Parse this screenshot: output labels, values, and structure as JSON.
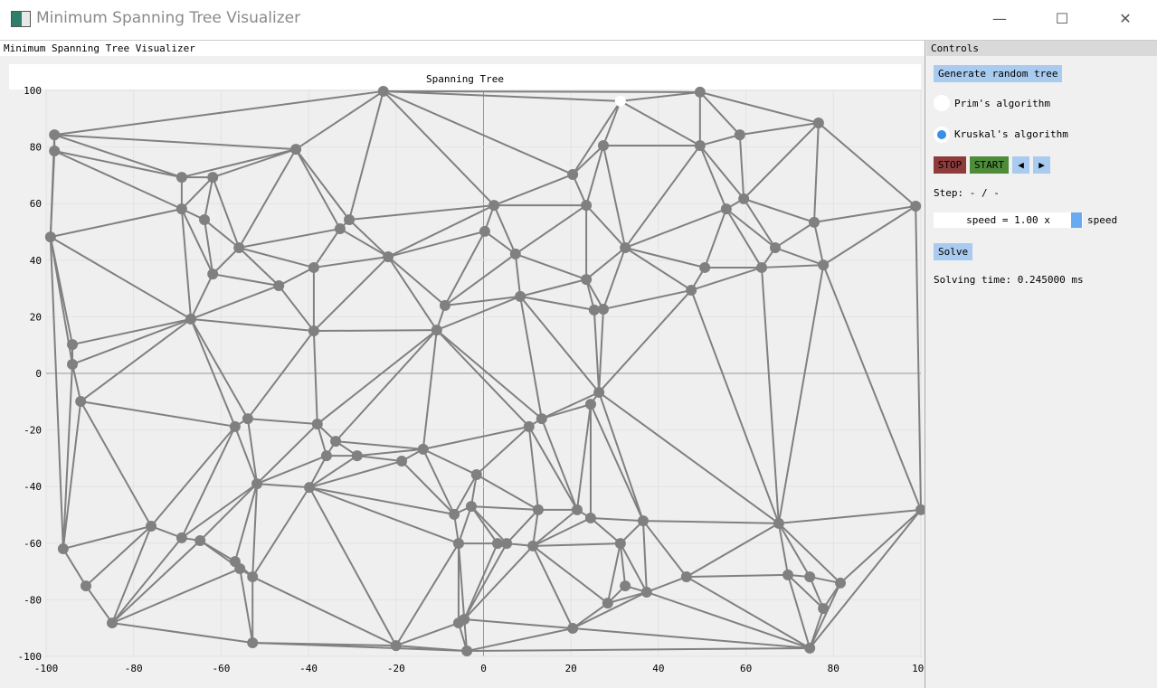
{
  "window": {
    "title": "Minimum Spanning Tree Visualizer",
    "minimize": "—",
    "maximize": "☐",
    "close": "✕"
  },
  "left_panel": {
    "header": "Minimum Spanning Tree Visualizer"
  },
  "controls": {
    "header": "Controls",
    "generate_label": "Generate random tree",
    "prim_label": "Prim's algorithm",
    "kruskal_label": "Kruskal's algorithm",
    "selected_algorithm": "Kruskal's algorithm",
    "stop_label": "STOP",
    "start_label": "START",
    "prev_label": "◀",
    "next_label": "▶",
    "step_text": "Step: - / -",
    "speed_value": "speed = 1.00 x",
    "speed_label": "speed",
    "solve_label": "Solve",
    "solving_time": "Solving time: 0.245000 ms",
    "colors": {
      "stop": "#8e3b3b",
      "start": "#4e8c3a",
      "button": "#a9cbef",
      "radio_on": "#3a8ee6"
    }
  },
  "chart_data": {
    "type": "scatter",
    "title": "Spanning Tree",
    "xlim": [
      -100,
      100
    ],
    "ylim": [
      -100,
      100
    ],
    "x_ticks": [
      "-100",
      "-80",
      "-60",
      "-40",
      "-20",
      "0",
      "20",
      "40",
      "60",
      "80",
      "100"
    ],
    "y_ticks": [
      "100",
      "80",
      "60",
      "40",
      "20",
      "0",
      "-20",
      "-40",
      "-60",
      "-80",
      "-100"
    ],
    "grid": true,
    "node_color": "#808080",
    "edge_color": "#808080",
    "highlight_color": "#ffffff",
    "highlighted_node": 58,
    "nodes": [
      [
        -98.1,
        84.3
      ],
      [
        -98.1,
        78.6
      ],
      [
        -99.0,
        48.2
      ],
      [
        -94.0,
        10.2
      ],
      [
        -94.0,
        3.2
      ],
      [
        -92.1,
        -9.9
      ],
      [
        -96.1,
        -62.0
      ],
      [
        -90.9,
        -75.1
      ],
      [
        -84.9,
        -88.2
      ],
      [
        -76.0,
        -54.0
      ],
      [
        -69.0,
        -58.1
      ],
      [
        -64.8,
        -59.1
      ],
      [
        -69.0,
        69.3
      ],
      [
        -61.9,
        69.3
      ],
      [
        -69.0,
        58.1
      ],
      [
        -63.8,
        54.3
      ],
      [
        -61.9,
        35.1
      ],
      [
        -55.9,
        44.4
      ],
      [
        -46.8,
        31.0
      ],
      [
        -66.9,
        19.2
      ],
      [
        -42.9,
        79.2
      ],
      [
        -22.9,
        99.7
      ],
      [
        -30.7,
        54.3
      ],
      [
        -32.8,
        51.1
      ],
      [
        -38.8,
        37.4
      ],
      [
        -21.8,
        41.2
      ],
      [
        -38.8,
        15.0
      ],
      [
        -56.8,
        -18.8
      ],
      [
        -53.9,
        -16.0
      ],
      [
        -38.0,
        -17.9
      ],
      [
        -33.8,
        -24.0
      ],
      [
        -35.9,
        -29.1
      ],
      [
        -28.9,
        -29.1
      ],
      [
        -13.8,
        -26.8
      ],
      [
        -18.7,
        -31.0
      ],
      [
        -51.8,
        -39.0
      ],
      [
        -39.8,
        -40.3
      ],
      [
        -56.8,
        -66.5
      ],
      [
        -55.7,
        -69.0
      ],
      [
        -52.8,
        -71.9
      ],
      [
        -52.8,
        -95.2
      ],
      [
        -20.0,
        -96.2
      ],
      [
        -3.8,
        -98.1
      ],
      [
        -5.7,
        -88.2
      ],
      [
        -4.4,
        -86.9
      ],
      [
        -5.7,
        -60.1
      ],
      [
        -6.7,
        -49.8
      ],
      [
        -2.8,
        -47.0
      ],
      [
        -1.6,
        -35.8
      ],
      [
        -10.7,
        15.3
      ],
      [
        -8.8,
        24.0
      ],
      [
        0.3,
        50.2
      ],
      [
        2.4,
        59.4
      ],
      [
        7.3,
        42.2
      ],
      [
        8.4,
        27.2
      ],
      [
        23.5,
        59.4
      ],
      [
        20.4,
        70.3
      ],
      [
        27.4,
        80.5
      ],
      [
        31.3,
        96.2
      ],
      [
        49.5,
        99.4
      ],
      [
        49.5,
        80.5
      ],
      [
        58.6,
        84.3
      ],
      [
        76.6,
        88.5
      ],
      [
        59.5,
        61.7
      ],
      [
        55.5,
        58.1
      ],
      [
        32.4,
        44.4
      ],
      [
        23.5,
        33.2
      ],
      [
        25.3,
        22.4
      ],
      [
        27.4,
        22.7
      ],
      [
        26.4,
        -6.7
      ],
      [
        24.5,
        -10.9
      ],
      [
        13.3,
        -16.0
      ],
      [
        10.4,
        -18.8
      ],
      [
        12.5,
        -48.2
      ],
      [
        3.2,
        -60.1
      ],
      [
        5.3,
        -60.1
      ],
      [
        11.3,
        -61.0
      ],
      [
        21.4,
        -48.2
      ],
      [
        24.5,
        -51.1
      ],
      [
        36.5,
        -52.1
      ],
      [
        31.3,
        -60.1
      ],
      [
        32.4,
        -75.1
      ],
      [
        28.4,
        -81.2
      ],
      [
        37.3,
        -77.3
      ],
      [
        20.4,
        -90.1
      ],
      [
        46.4,
        -71.9
      ],
      [
        47.5,
        29.4
      ],
      [
        50.6,
        37.4
      ],
      [
        63.6,
        37.4
      ],
      [
        66.7,
        44.4
      ],
      [
        75.6,
        53.4
      ],
      [
        77.7,
        38.3
      ],
      [
        98.8,
        59.1
      ],
      [
        100.0,
        -48.2
      ],
      [
        67.5,
        -53.0
      ],
      [
        69.6,
        -71.2
      ],
      [
        74.6,
        -71.9
      ],
      [
        81.6,
        -74.1
      ],
      [
        77.7,
        -83.1
      ],
      [
        74.6,
        -97.1
      ]
    ]
  }
}
